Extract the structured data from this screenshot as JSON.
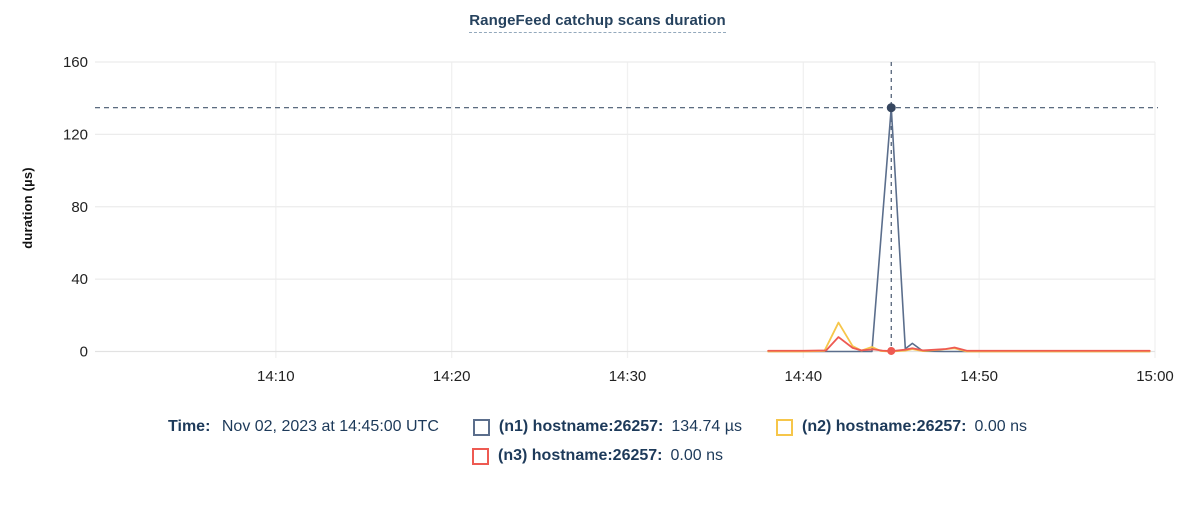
{
  "legend": {
    "time_label": "Time:",
    "time_value": "Nov 02, 2023 at 14:45:00 UTC"
  },
  "colors": {
    "title_text": "#26425e",
    "legend_text": "#1d3a5a",
    "tick_text": "#222222",
    "grid_h": "#ececec",
    "grid_h_zero": "#e2e2e2",
    "grid_v": "#f1f1f1",
    "crosshair": "#46586f",
    "series_n1": "#5b6e8c",
    "series_n1_dot": "#36465f",
    "series_n2": "#f6c64a",
    "series_n3": "#ee5a52"
  },
  "chart_data": {
    "type": "line",
    "title": "RangeFeed catchup scans duration",
    "ylabel": "duration (µs)",
    "ylim": [
      0,
      160
    ],
    "yticks": [
      0,
      40,
      80,
      120,
      160
    ],
    "x_axis": {
      "start_minute": 0,
      "end_minute": 60,
      "start_time": "14:00",
      "tick_minutes": [
        10,
        20,
        30,
        40,
        50,
        60
      ],
      "tick_labels": [
        "14:10",
        "14:20",
        "14:30",
        "14:40",
        "14:50",
        "15:00"
      ]
    },
    "grid": true,
    "legend_position": "bottom",
    "crosshair": {
      "time_label": "14:45:00",
      "x_minute": 45,
      "value": 134.74,
      "color": "#46586f"
    },
    "series": [
      {
        "id": "n1",
        "label": "(n1) hostname:26257:",
        "value": "134.74 µs",
        "color": "#5b6e8c",
        "dot_color": "#36465f",
        "stroke_width": 1.6,
        "marker": {
          "x": 45,
          "y": 134.74,
          "r": 4.5
        },
        "points": [
          [
            38,
            0
          ],
          [
            40,
            0
          ],
          [
            41.5,
            0
          ],
          [
            42,
            0
          ],
          [
            43,
            0
          ],
          [
            43.9,
            0
          ],
          [
            45,
            134.74
          ],
          [
            45.8,
            1.5
          ],
          [
            46.2,
            4.5
          ],
          [
            46.8,
            0.2
          ],
          [
            48,
            0
          ],
          [
            50,
            0
          ],
          [
            53,
            0
          ],
          [
            56,
            0
          ],
          [
            59.7,
            0
          ]
        ]
      },
      {
        "id": "n2",
        "label": "(n2) hostname:26257:",
        "value": "0.00 ns",
        "color": "#f6c64a",
        "stroke_width": 1.8,
        "points": [
          [
            38,
            0
          ],
          [
            40,
            0
          ],
          [
            41.2,
            0.3
          ],
          [
            42,
            16
          ],
          [
            42.8,
            3
          ],
          [
            43.3,
            0.5
          ],
          [
            43.9,
            2.5
          ],
          [
            44.4,
            0.3
          ],
          [
            45,
            0
          ],
          [
            45.8,
            0.5
          ],
          [
            46.2,
            1.3
          ],
          [
            46.8,
            0.2
          ],
          [
            48.1,
            1.3
          ],
          [
            48.6,
            1.8
          ],
          [
            49.3,
            0
          ],
          [
            51,
            0
          ],
          [
            55,
            0
          ],
          [
            59.7,
            0
          ]
        ]
      },
      {
        "id": "n3",
        "label": "(n3) hostname:26257:",
        "value": "0.00 ns",
        "color": "#ee5a52",
        "stroke_width": 1.8,
        "marker": {
          "x": 45,
          "y": 0.3,
          "r": 4
        },
        "points": [
          [
            38,
            0.4
          ],
          [
            40,
            0.4
          ],
          [
            41.3,
            0.6
          ],
          [
            42,
            8
          ],
          [
            42.8,
            2
          ],
          [
            43.3,
            0.6
          ],
          [
            44,
            1.2
          ],
          [
            44.5,
            0.5
          ],
          [
            45,
            0.2
          ],
          [
            45.8,
            1
          ],
          [
            46.2,
            1.8
          ],
          [
            46.8,
            0.6
          ],
          [
            48.1,
            1.4
          ],
          [
            48.6,
            2.2
          ],
          [
            49.3,
            0.4
          ],
          [
            51,
            0.4
          ],
          [
            55,
            0.4
          ],
          [
            59.7,
            0.4
          ]
        ]
      }
    ]
  }
}
